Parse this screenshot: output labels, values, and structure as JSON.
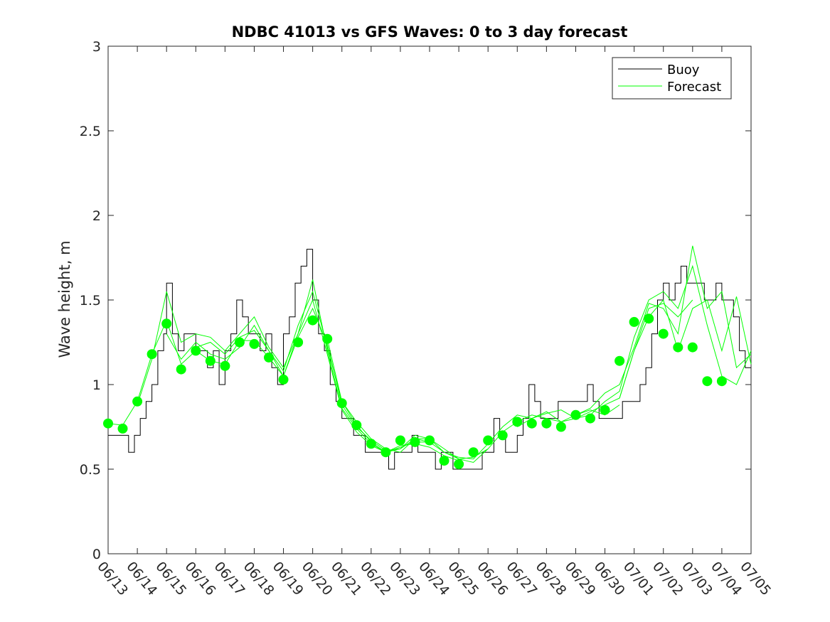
{
  "chart_data": {
    "type": "line",
    "title": "NDBC 41013 vs GFS Waves: 0 to 3 day forecast",
    "ylabel": "Wave height, m",
    "xlabel": "",
    "ylim": [
      0,
      3
    ],
    "yticks": [
      0,
      0.5,
      1,
      1.5,
      2,
      2.5,
      3
    ],
    "ytick_labels": [
      "0",
      "0.5",
      "1",
      "1.5",
      "2",
      "2.5",
      "3"
    ],
    "xlim": [
      0,
      22
    ],
    "xtick_labels": [
      "06/13",
      "06/14",
      "06/15",
      "06/16",
      "06/17",
      "06/18",
      "06/19",
      "06/20",
      "06/21",
      "06/22",
      "06/23",
      "06/24",
      "06/25",
      "06/26",
      "06/27",
      "06/28",
      "06/29",
      "06/30",
      "07/01",
      "07/02",
      "07/03",
      "07/04",
      "07/05"
    ],
    "grid": false,
    "legend": {
      "position": "top-right",
      "entries": [
        "Buoy",
        "Forecast"
      ]
    },
    "colors": {
      "buoy": "#000000",
      "forecast": "#00ff00",
      "axis": "#262626"
    },
    "buoy": {
      "name": "Buoy",
      "x": [
        0,
        0.3,
        0.5,
        0.7,
        0.9,
        1.1,
        1.3,
        1.5,
        1.7,
        1.9,
        2.0,
        2.2,
        2.4,
        2.6,
        2.8,
        3.0,
        3.2,
        3.4,
        3.6,
        3.8,
        4.0,
        4.2,
        4.4,
        4.6,
        4.8,
        5.0,
        5.2,
        5.4,
        5.6,
        5.8,
        6.0,
        6.2,
        6.4,
        6.6,
        6.8,
        7.0,
        7.2,
        7.4,
        7.6,
        7.8,
        8.0,
        8.2,
        8.4,
        8.6,
        8.8,
        9.0,
        9.2,
        9.4,
        9.6,
        9.8,
        10.0,
        10.2,
        10.4,
        10.6,
        10.8,
        11.0,
        11.2,
        11.4,
        11.6,
        11.8,
        12.0,
        12.2,
        12.4,
        12.6,
        12.8,
        13.0,
        13.2,
        13.4,
        13.6,
        13.8,
        14.0,
        14.2,
        14.4,
        14.6,
        14.8,
        15.0,
        15.2,
        15.4,
        15.6,
        15.8,
        16.0,
        16.2,
        16.4,
        16.6,
        16.8,
        17.0,
        17.2,
        17.4,
        17.6,
        17.8,
        18.0,
        18.2,
        18.4,
        18.6,
        18.8,
        19.0,
        19.2,
        19.4,
        19.6,
        19.8,
        20.0,
        20.2,
        20.4,
        20.6,
        20.8,
        21.0,
        21.2,
        21.4,
        21.6,
        21.8,
        22.0
      ],
      "values": [
        0.7,
        0.7,
        0.7,
        0.6,
        0.7,
        0.8,
        0.9,
        1.0,
        1.2,
        1.3,
        1.6,
        1.3,
        1.2,
        1.3,
        1.3,
        1.2,
        1.2,
        1.1,
        1.2,
        1.0,
        1.2,
        1.3,
        1.5,
        1.4,
        1.3,
        1.3,
        1.2,
        1.3,
        1.1,
        1.0,
        1.3,
        1.4,
        1.6,
        1.7,
        1.8,
        1.5,
        1.3,
        1.2,
        1.0,
        0.9,
        0.8,
        0.8,
        0.7,
        0.7,
        0.6,
        0.6,
        0.6,
        0.6,
        0.5,
        0.6,
        0.6,
        0.6,
        0.7,
        0.6,
        0.6,
        0.6,
        0.5,
        0.6,
        0.6,
        0.5,
        0.5,
        0.5,
        0.5,
        0.5,
        0.6,
        0.6,
        0.8,
        0.7,
        0.6,
        0.6,
        0.7,
        0.8,
        1.0,
        0.9,
        0.8,
        0.8,
        0.8,
        0.9,
        0.9,
        0.9,
        0.9,
        0.9,
        1.0,
        0.9,
        0.8,
        0.8,
        0.8,
        0.8,
        0.9,
        0.9,
        0.9,
        1.0,
        1.1,
        1.3,
        1.5,
        1.6,
        1.5,
        1.6,
        1.7,
        1.6,
        1.6,
        1.6,
        1.5,
        1.5,
        1.6,
        1.5,
        1.5,
        1.4,
        1.2,
        1.1,
        1.1
      ]
    },
    "forecast_runs": [
      {
        "name": "Forecast",
        "x": [
          0,
          0.5,
          1.0,
          1.5,
          2.0,
          2.5,
          3.0,
          3.5,
          4.0,
          4.5,
          5.0,
          5.5,
          6.0,
          6.5,
          7.0,
          7.5,
          8.0,
          8.5,
          9.0,
          9.5,
          10.0
        ],
        "values": [
          0.77,
          0.76,
          0.9,
          1.18,
          1.38,
          1.12,
          1.2,
          1.14,
          1.12,
          1.26,
          1.26,
          1.16,
          1.05,
          1.28,
          1.45,
          1.24,
          0.88,
          0.75,
          0.67,
          0.61,
          0.62
        ]
      },
      {
        "name": "Forecast",
        "x": [
          1.0,
          1.5,
          2.0,
          2.5,
          3.0,
          3.5,
          4.0,
          4.5,
          5.0,
          5.5,
          6.0,
          6.5,
          7.0,
          7.5,
          8.0,
          8.5,
          9.0,
          9.5,
          10.0,
          10.5,
          11.0
        ],
        "values": [
          0.88,
          1.15,
          1.55,
          1.25,
          1.3,
          1.28,
          1.2,
          1.3,
          1.4,
          1.22,
          1.1,
          1.3,
          1.62,
          1.2,
          0.86,
          0.74,
          0.65,
          0.6,
          0.63,
          0.66,
          0.66
        ]
      },
      {
        "name": "Forecast",
        "x": [
          2.0,
          2.5,
          3.0,
          3.5,
          4.0,
          4.5,
          5.0,
          5.5,
          6.0,
          6.5,
          7.0,
          7.5,
          8.0,
          8.5,
          9.0,
          9.5,
          10.0,
          10.5,
          11.0,
          11.5,
          12.0
        ],
        "values": [
          1.3,
          1.15,
          1.25,
          1.18,
          1.15,
          1.22,
          1.35,
          1.2,
          1.05,
          1.3,
          1.5,
          1.18,
          0.85,
          0.72,
          0.64,
          0.6,
          0.64,
          0.65,
          0.63,
          0.58,
          0.55
        ]
      },
      {
        "name": "Forecast",
        "x": [
          3.0,
          3.5,
          4.0,
          4.5,
          5.0,
          5.5,
          6.0,
          6.5,
          7.0,
          7.5,
          8.0,
          8.5,
          9.0,
          9.5,
          10.0,
          10.5,
          11.0,
          11.5,
          12.0,
          12.5,
          13.0
        ],
        "values": [
          1.22,
          1.25,
          1.18,
          1.28,
          1.32,
          1.2,
          1.08,
          1.35,
          1.55,
          1.22,
          0.9,
          0.76,
          0.66,
          0.6,
          0.62,
          0.68,
          0.66,
          0.6,
          0.56,
          0.57,
          0.62
        ]
      },
      {
        "name": "Forecast",
        "x": [
          7.5,
          8.0,
          8.5,
          9.0,
          9.5,
          10.0,
          10.5,
          11.0,
          11.5,
          12.0,
          12.5,
          13.0,
          13.5,
          14.0,
          14.5,
          15.0,
          15.5,
          16.0,
          16.5,
          17.0,
          17.5
        ],
        "values": [
          1.27,
          0.9,
          0.78,
          0.68,
          0.62,
          0.6,
          0.68,
          0.68,
          0.62,
          0.56,
          0.54,
          0.62,
          0.72,
          0.78,
          0.82,
          0.8,
          0.78,
          0.82,
          0.85,
          0.82,
          0.88
        ]
      },
      {
        "name": "Forecast",
        "x": [
          10.0,
          10.5,
          11.0,
          11.5,
          12.0,
          12.5,
          13.0,
          13.5,
          14.0,
          14.5,
          15.0,
          15.5,
          16.0,
          16.5,
          17.0,
          17.5,
          18.0,
          18.5,
          19.0,
          19.5,
          20.0
        ],
        "values": [
          0.62,
          0.7,
          0.68,
          0.6,
          0.57,
          0.56,
          0.65,
          0.75,
          0.82,
          0.8,
          0.83,
          0.85,
          0.8,
          0.84,
          0.88,
          0.92,
          1.2,
          1.45,
          1.48,
          1.4,
          1.5
        ]
      },
      {
        "name": "Forecast",
        "x": [
          14.0,
          14.5,
          15.0,
          15.5,
          16.0,
          16.5,
          17.0,
          17.5,
          18.0,
          18.5,
          19.0,
          19.5,
          20.0,
          20.5,
          21.0,
          21.5,
          22.0
        ],
        "values": [
          0.75,
          0.8,
          0.84,
          0.78,
          0.8,
          0.82,
          0.9,
          0.96,
          1.28,
          1.5,
          1.55,
          1.45,
          1.7,
          1.35,
          1.05,
          1.0,
          1.2
        ]
      },
      {
        "name": "Forecast",
        "x": [
          16.0,
          16.5,
          17.0,
          17.5,
          18.0,
          18.5,
          19.0,
          19.5,
          20.0,
          20.5,
          21.0,
          21.5,
          22.0
        ],
        "values": [
          0.82,
          0.86,
          0.95,
          1.0,
          1.22,
          1.48,
          1.45,
          1.3,
          1.82,
          1.45,
          1.55,
          1.1,
          1.18
        ]
      },
      {
        "name": "Forecast",
        "x": [
          17.5,
          18.0,
          18.5,
          19.0,
          19.5,
          20.0,
          20.5,
          21.0,
          21.5,
          22.0
        ],
        "values": [
          0.92,
          1.2,
          1.4,
          1.5,
          1.2,
          1.45,
          1.5,
          1.2,
          1.52,
          1.12
        ]
      }
    ],
    "forecast_points": {
      "name": "Forecast",
      "x": [
        0,
        0.5,
        1.0,
        1.5,
        2.0,
        2.5,
        3.0,
        3.5,
        4.0,
        4.5,
        5.0,
        5.5,
        6.0,
        6.5,
        7.0,
        7.5,
        8.0,
        8.5,
        9.0,
        9.5,
        10.0,
        10.5,
        11.0,
        11.5,
        12.0,
        12.5,
        13.0,
        13.5,
        14.0,
        14.5,
        15.0,
        15.5,
        16.0,
        16.5,
        17.0,
        17.5,
        18.0,
        18.5,
        19.0,
        19.5,
        20.0,
        20.5,
        21.0
      ],
      "values": [
        0.77,
        0.74,
        0.9,
        1.18,
        1.36,
        1.09,
        1.2,
        1.14,
        1.11,
        1.25,
        1.24,
        1.16,
        1.03,
        1.25,
        1.38,
        1.27,
        0.89,
        0.76,
        0.65,
        0.6,
        0.67,
        0.66,
        0.67,
        0.55,
        0.53,
        0.6,
        0.67,
        0.7,
        0.78,
        0.77,
        0.77,
        0.75,
        0.82,
        0.8,
        0.85,
        1.14,
        1.37,
        1.39,
        1.3,
        1.22,
        1.22,
        1.02,
        1.02
      ]
    }
  }
}
